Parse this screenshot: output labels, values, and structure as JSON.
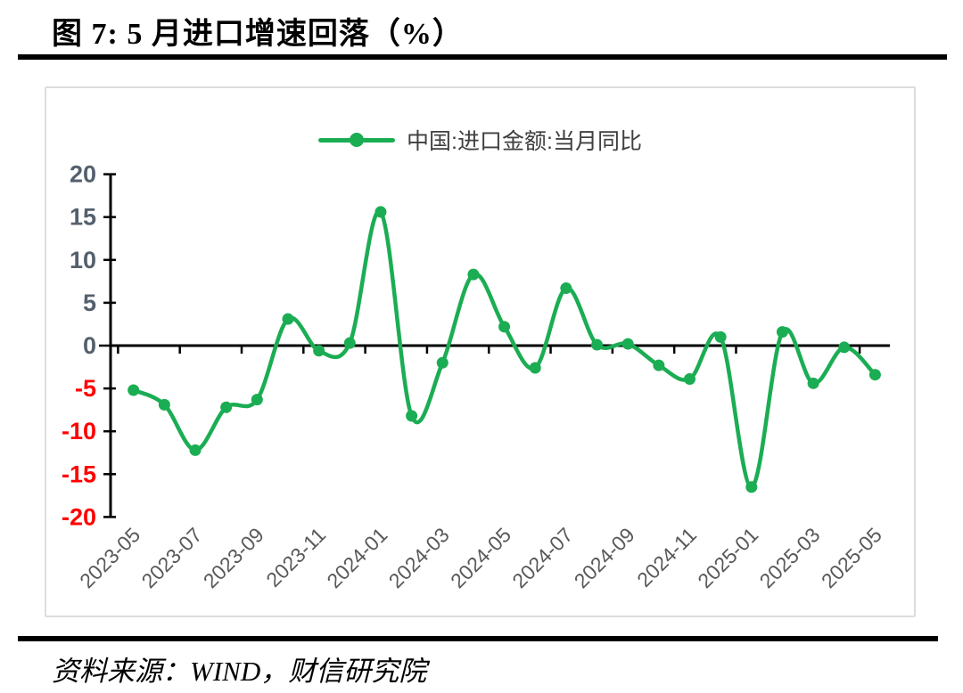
{
  "title": "图 7: 5 月进口增速回落（%）",
  "source_note": "资料来源：WIND，财信研究院",
  "colors": {
    "line": "#1bad53",
    "marker": "#1bad53",
    "axis": "#000000",
    "ytick_label_positive": "#55606e",
    "ytick_label_negative": "#ff0000",
    "xtick_label": "#595959",
    "legend_text": "#3f3f3f",
    "panel_border": "#dcdcdc"
  },
  "chart_data": {
    "type": "line",
    "smooth": true,
    "grid": false,
    "legend_position": "top-center",
    "series": [
      {
        "name": "中国:进口金额:当月同比",
        "values": [
          -5.2,
          -6.9,
          -12.2,
          -7.2,
          -6.3,
          3.1,
          -0.6,
          0.3,
          15.6,
          -8.2,
          -2.0,
          8.3,
          2.2,
          -2.6,
          6.7,
          0.1,
          0.2,
          -2.3,
          -3.9,
          1.0,
          -16.5,
          1.6,
          -4.4,
          -0.2,
          -3.4
        ]
      }
    ],
    "x": [
      "2023-05",
      "2023-06",
      "2023-07",
      "2023-08",
      "2023-09",
      "2023-10",
      "2023-11",
      "2023-12",
      "2024-01",
      "2024-02",
      "2024-03",
      "2024-04",
      "2024-05",
      "2024-06",
      "2024-07",
      "2024-08",
      "2024-09",
      "2024-10",
      "2024-11",
      "2024-12",
      "2025-01",
      "2025-02",
      "2025-03",
      "2025-04",
      "2025-05"
    ],
    "xtick_labels": [
      "2023-05",
      "2023-07",
      "2023-09",
      "2023-11",
      "2024-01",
      "2024-03",
      "2024-05",
      "2024-07",
      "2024-09",
      "2024-11",
      "2025-01",
      "2025-03",
      "2025-05"
    ],
    "ylabel": "",
    "xlabel": "",
    "ylim": [
      -20,
      20
    ],
    "ytick_step": 5,
    "yticks": [
      20,
      15,
      10,
      5,
      0,
      -5,
      -10,
      -15,
      -20
    ]
  }
}
